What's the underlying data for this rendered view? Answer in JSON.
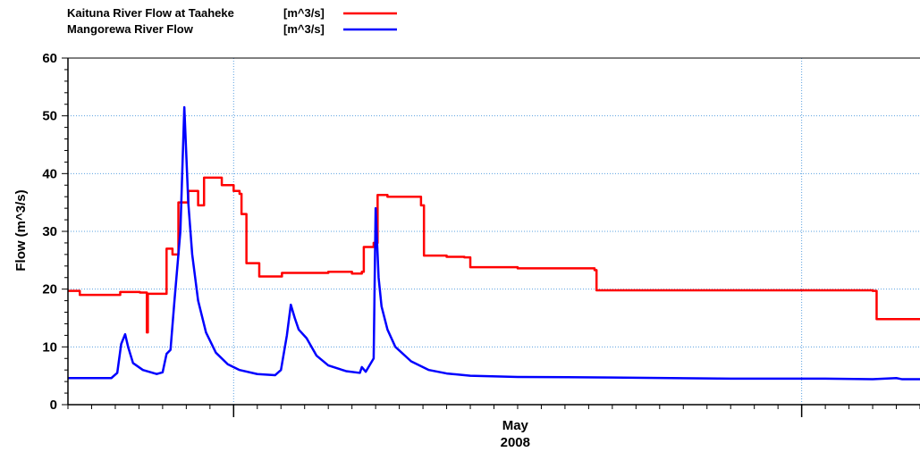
{
  "chart_data": {
    "type": "line",
    "ylabel": "Flow (m^3/s)",
    "xlabel": "",
    "ylim": [
      0,
      60
    ],
    "yticks": [
      0,
      10,
      20,
      30,
      40,
      50,
      60
    ],
    "x_domain": [
      "2008-04-24",
      "2008-05-30"
    ],
    "x_tick_label": {
      "date": "2008-05-01",
      "line1": "May",
      "line2": "2008"
    },
    "x_gridlines": [
      "2008-05-01",
      "2008-05-25"
    ],
    "grid": true,
    "legend": {
      "placement": "top-left",
      "entries": [
        {
          "name": "Kaituna River Flow at Taaheke",
          "unit": "[m^3/s]",
          "color": "#ff0000"
        },
        {
          "name": "Mangorewa River Flow",
          "unit": "[m^3/s]",
          "color": "#0000ff"
        }
      ]
    },
    "series": [
      {
        "name": "Kaituna River Flow at Taaheke",
        "color": "#ff0000",
        "step": true,
        "points": [
          [
            "2008-04-24T00:00",
            19.7
          ],
          [
            "2008-04-24T12:00",
            19.0
          ],
          [
            "2008-04-26T02:00",
            19.0
          ],
          [
            "2008-04-26T05:00",
            19.5
          ],
          [
            "2008-04-27T01:00",
            19.4
          ],
          [
            "2008-04-27T08:00",
            12.5
          ],
          [
            "2008-04-27T09:00",
            19.2
          ],
          [
            "2008-04-28T00:00",
            19.2
          ],
          [
            "2008-04-28T04:00",
            27.0
          ],
          [
            "2008-04-28T10:00",
            26.0
          ],
          [
            "2008-04-28T16:00",
            35.0
          ],
          [
            "2008-04-29T02:00",
            37.0
          ],
          [
            "2008-04-29T12:00",
            34.5
          ],
          [
            "2008-04-29T18:00",
            39.3
          ],
          [
            "2008-04-30T12:00",
            38.0
          ],
          [
            "2008-05-01T00:00",
            37.0
          ],
          [
            "2008-05-01T06:00",
            36.5
          ],
          [
            "2008-05-01T08:00",
            33.0
          ],
          [
            "2008-05-01T13:00",
            24.5
          ],
          [
            "2008-05-02T01:00",
            24.5
          ],
          [
            "2008-05-02T02:00",
            22.2
          ],
          [
            "2008-05-03T01:00",
            22.8
          ],
          [
            "2008-05-05T00:00",
            23.0
          ],
          [
            "2008-05-06T00:00",
            22.7
          ],
          [
            "2008-05-06T10:00",
            23.0
          ],
          [
            "2008-05-06T12:00",
            27.3
          ],
          [
            "2008-05-06T22:00",
            28.0
          ],
          [
            "2008-05-07T02:00",
            36.3
          ],
          [
            "2008-05-07T12:00",
            36.0
          ],
          [
            "2008-05-08T22:00",
            34.5
          ],
          [
            "2008-05-09T01:00",
            25.8
          ],
          [
            "2008-05-10T00:00",
            25.6
          ],
          [
            "2008-05-10T18:00",
            25.5
          ],
          [
            "2008-05-11T00:00",
            23.8
          ],
          [
            "2008-05-13T00:00",
            23.6
          ],
          [
            "2008-05-16T06:00",
            23.3
          ],
          [
            "2008-05-16T08:00",
            19.8
          ],
          [
            "2008-05-20T00:00",
            19.8
          ],
          [
            "2008-05-28T00:00",
            19.7
          ],
          [
            "2008-05-28T04:00",
            14.8
          ],
          [
            "2008-05-30T00:00",
            15.0
          ]
        ]
      },
      {
        "name": "Mangorewa River Flow",
        "color": "#0000ff",
        "step": false,
        "points": [
          [
            "2008-04-24T00:00",
            4.6
          ],
          [
            "2008-04-25T20:00",
            4.6
          ],
          [
            "2008-04-26T02:00",
            5.5
          ],
          [
            "2008-04-26T06:00",
            10.5
          ],
          [
            "2008-04-26T10:00",
            12.2
          ],
          [
            "2008-04-26T13:00",
            10.0
          ],
          [
            "2008-04-26T18:00",
            7.2
          ],
          [
            "2008-04-27T04:00",
            6.0
          ],
          [
            "2008-04-27T18:00",
            5.3
          ],
          [
            "2008-04-28T00:00",
            5.6
          ],
          [
            "2008-04-28T04:00",
            8.8
          ],
          [
            "2008-04-28T08:00",
            9.5
          ],
          [
            "2008-04-28T12:00",
            18.0
          ],
          [
            "2008-04-28T18:00",
            30.0
          ],
          [
            "2008-04-28T22:00",
            51.5
          ],
          [
            "2008-04-29T02:00",
            35.0
          ],
          [
            "2008-04-29T06:00",
            26.0
          ],
          [
            "2008-04-29T12:00",
            18.0
          ],
          [
            "2008-04-29T20:00",
            12.5
          ],
          [
            "2008-04-30T06:00",
            9.0
          ],
          [
            "2008-04-30T18:00",
            7.0
          ],
          [
            "2008-05-01T06:00",
            6.0
          ],
          [
            "2008-05-02T00:00",
            5.3
          ],
          [
            "2008-05-02T18:00",
            5.1
          ],
          [
            "2008-05-03T00:00",
            6.0
          ],
          [
            "2008-05-03T06:00",
            12.0
          ],
          [
            "2008-05-03T10:00",
            17.3
          ],
          [
            "2008-05-03T14:00",
            15.0
          ],
          [
            "2008-05-03T18:00",
            13.0
          ],
          [
            "2008-05-04T02:00",
            11.5
          ],
          [
            "2008-05-04T12:00",
            8.5
          ],
          [
            "2008-05-05T00:00",
            6.8
          ],
          [
            "2008-05-05T18:00",
            5.8
          ],
          [
            "2008-05-06T08:00",
            5.5
          ],
          [
            "2008-05-06T10:00",
            6.5
          ],
          [
            "2008-05-06T14:00",
            5.7
          ],
          [
            "2008-05-06T22:00",
            8.0
          ],
          [
            "2008-05-07T00:00",
            34.0
          ],
          [
            "2008-05-07T03:00",
            22.0
          ],
          [
            "2008-05-07T06:00",
            17.0
          ],
          [
            "2008-05-07T12:00",
            13.0
          ],
          [
            "2008-05-07T20:00",
            10.0
          ],
          [
            "2008-05-08T12:00",
            7.5
          ],
          [
            "2008-05-09T06:00",
            6.0
          ],
          [
            "2008-05-10T00:00",
            5.4
          ],
          [
            "2008-05-11T00:00",
            5.0
          ],
          [
            "2008-05-13T00:00",
            4.8
          ],
          [
            "2008-05-17T00:00",
            4.7
          ],
          [
            "2008-05-22T00:00",
            4.5
          ],
          [
            "2008-05-26T00:00",
            4.5
          ],
          [
            "2008-05-28T00:00",
            4.4
          ],
          [
            "2008-05-29T00:00",
            4.6
          ],
          [
            "2008-05-29T06:00",
            4.4
          ],
          [
            "2008-05-30T00:00",
            4.4
          ]
        ]
      }
    ]
  }
}
